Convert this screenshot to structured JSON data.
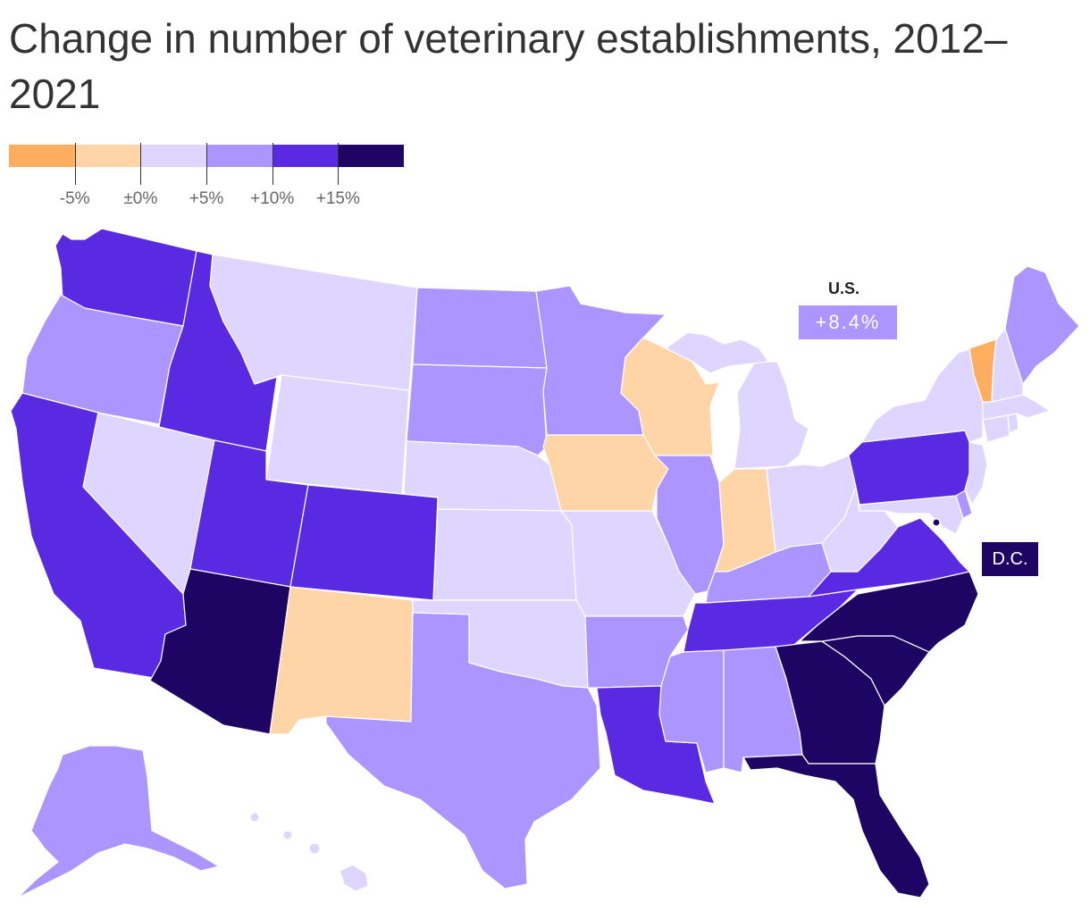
{
  "title": "Change in number of veterinary establishments, 2012–2021",
  "legend": {
    "colors": [
      "#ffae60",
      "#ffd5a8",
      "#dfd6ff",
      "#ad95ff",
      "#5a2ae2",
      "#1f0563"
    ],
    "ticks": [
      "-5%",
      "±0%",
      "+5%",
      "+10%",
      "+15%"
    ]
  },
  "annotations": {
    "us_label": "U.S.",
    "us_value": "+8.4%",
    "dc_label": "D.C."
  },
  "states": [
    {
      "name": "Washington",
      "color": "#5a2ae2"
    },
    {
      "name": "Oregon",
      "color": "#ad95ff"
    },
    {
      "name": "California",
      "color": "#5a2ae2"
    },
    {
      "name": "Nevada",
      "color": "#dfd6ff"
    },
    {
      "name": "Idaho",
      "color": "#5a2ae2"
    },
    {
      "name": "Montana",
      "color": "#dfd6ff"
    },
    {
      "name": "Wyoming",
      "color": "#dfd6ff"
    },
    {
      "name": "Utah",
      "color": "#5a2ae2"
    },
    {
      "name": "Arizona",
      "color": "#1f0563"
    },
    {
      "name": "Colorado",
      "color": "#5a2ae2"
    },
    {
      "name": "New Mexico",
      "color": "#ffd5a8"
    },
    {
      "name": "North Dakota",
      "color": "#ad95ff"
    },
    {
      "name": "South Dakota",
      "color": "#ad95ff"
    },
    {
      "name": "Nebraska",
      "color": "#dfd6ff"
    },
    {
      "name": "Kansas",
      "color": "#dfd6ff"
    },
    {
      "name": "Oklahoma",
      "color": "#dfd6ff"
    },
    {
      "name": "Texas",
      "color": "#ad95ff"
    },
    {
      "name": "Minnesota",
      "color": "#ad95ff"
    },
    {
      "name": "Iowa",
      "color": "#ffd5a8"
    },
    {
      "name": "Missouri",
      "color": "#dfd6ff"
    },
    {
      "name": "Arkansas",
      "color": "#ad95ff"
    },
    {
      "name": "Louisiana",
      "color": "#5a2ae2"
    },
    {
      "name": "Wisconsin",
      "color": "#ffd5a8"
    },
    {
      "name": "Illinois",
      "color": "#ad95ff"
    },
    {
      "name": "Michigan",
      "color": "#dfd6ff"
    },
    {
      "name": "Indiana",
      "color": "#ffd5a8"
    },
    {
      "name": "Ohio",
      "color": "#dfd6ff"
    },
    {
      "name": "Kentucky",
      "color": "#ad95ff"
    },
    {
      "name": "Tennessee",
      "color": "#5a2ae2"
    },
    {
      "name": "Mississippi",
      "color": "#ad95ff"
    },
    {
      "name": "Alabama",
      "color": "#ad95ff"
    },
    {
      "name": "Georgia",
      "color": "#1f0563"
    },
    {
      "name": "Florida",
      "color": "#1f0563"
    },
    {
      "name": "South Carolina",
      "color": "#1f0563"
    },
    {
      "name": "North Carolina",
      "color": "#1f0563"
    },
    {
      "name": "Virginia",
      "color": "#5a2ae2"
    },
    {
      "name": "West Virginia",
      "color": "#dfd6ff"
    },
    {
      "name": "Maryland",
      "color": "#dfd6ff"
    },
    {
      "name": "Delaware",
      "color": "#ad95ff"
    },
    {
      "name": "Pennsylvania",
      "color": "#5a2ae2"
    },
    {
      "name": "New Jersey",
      "color": "#dfd6ff"
    },
    {
      "name": "New York",
      "color": "#dfd6ff"
    },
    {
      "name": "Connecticut",
      "color": "#dfd6ff"
    },
    {
      "name": "Rhode Island",
      "color": "#dfd6ff"
    },
    {
      "name": "Massachusetts",
      "color": "#dfd6ff"
    },
    {
      "name": "Vermont",
      "color": "#ffae60"
    },
    {
      "name": "New Hampshire",
      "color": "#dfd6ff"
    },
    {
      "name": "Maine",
      "color": "#ad95ff"
    },
    {
      "name": "Alaska",
      "color": "#ad95ff"
    },
    {
      "name": "Hawaii",
      "color": "#dfd6ff"
    },
    {
      "name": "District of Columbia",
      "color": "#1f0563"
    }
  ]
}
